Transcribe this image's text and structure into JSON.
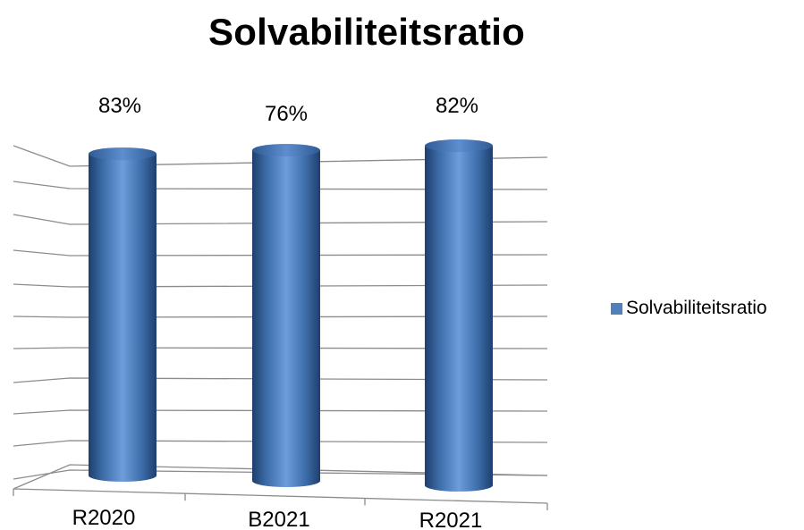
{
  "chart_data": {
    "type": "bar",
    "title": "Solvabiliteitsratio",
    "categories": [
      "R2020",
      "B2021",
      "R2021"
    ],
    "series": [
      {
        "name": "Solvabiliteitsratio",
        "values": [
          83,
          76,
          82
        ],
        "color": "#4F81BD"
      }
    ],
    "data_labels": [
      "83%",
      "76%",
      "82%"
    ],
    "xlabel": "",
    "ylabel": "",
    "grid": true,
    "legend_position": "right",
    "style": "3d-cylinder"
  }
}
